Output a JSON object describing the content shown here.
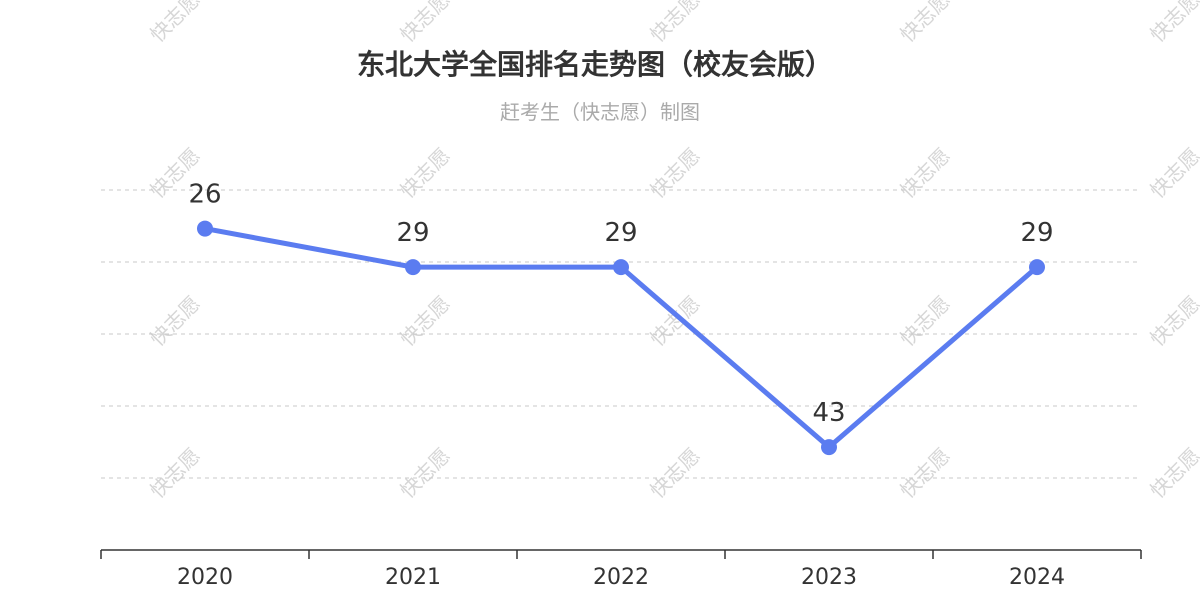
{
  "watermark_text": "快志愿",
  "chart_data": {
    "type": "line",
    "title": "东北大学全国排名走势图（校友会版）",
    "subtitle": "赶考生（快志愿）制图",
    "categories": [
      "2020",
      "2021",
      "2022",
      "2023",
      "2024"
    ],
    "values": [
      26,
      29,
      29,
      43,
      29
    ],
    "y_inverted": true,
    "ylim": [
      23,
      51
    ],
    "grid": true,
    "line_color": "#5b7cf0",
    "grid_color": "#c8c8c8"
  }
}
